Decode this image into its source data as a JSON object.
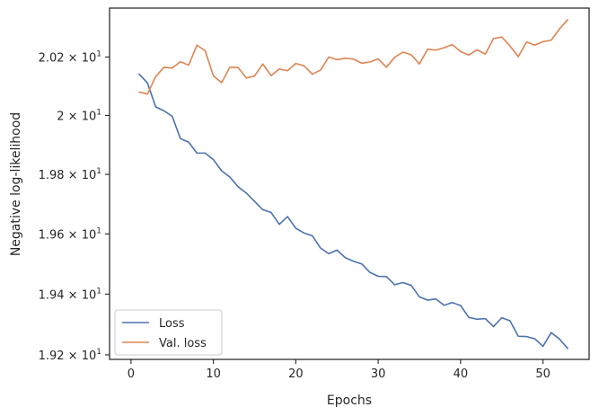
{
  "chart_data": {
    "type": "line",
    "xlabel": "Epochs",
    "ylabel": "Negative log-likelihood",
    "xlim": [
      -2.6,
      55.6
    ],
    "ylim": [
      19.1852,
      20.3693
    ],
    "y_scale": "log",
    "xticks": [
      0,
      10,
      20,
      30,
      40,
      50
    ],
    "xtick_labels": [
      "0",
      "10",
      "20",
      "30",
      "40",
      "50"
    ],
    "yticks": [
      19.2,
      19.4,
      19.6,
      19.8,
      20.0,
      20.2
    ],
    "ytick_mantissas": [
      "1.92",
      "1.94",
      "1.96",
      "1.98",
      "2",
      "2.02"
    ],
    "ytick_times": "×",
    "ytick_base": "10",
    "ytick_exp": "1",
    "grid": false,
    "legend_position": "lower-left",
    "x": [
      1,
      2,
      3,
      4,
      5,
      6,
      7,
      8,
      9,
      10,
      11,
      12,
      13,
      14,
      15,
      16,
      17,
      18,
      19,
      20,
      21,
      22,
      23,
      24,
      25,
      26,
      27,
      28,
      29,
      30,
      31,
      32,
      33,
      34,
      35,
      36,
      37,
      38,
      39,
      40,
      41,
      42,
      43,
      44,
      45,
      46,
      47,
      48,
      49,
      50,
      51,
      52,
      53
    ],
    "series": [
      {
        "name": "Loss",
        "color": "#4c72b0",
        "values": [
          20.141,
          20.111,
          20.029,
          20.016,
          19.997,
          19.921,
          19.909,
          19.872,
          19.872,
          19.85,
          19.812,
          19.791,
          19.758,
          19.737,
          19.709,
          19.681,
          19.672,
          19.632,
          19.658,
          19.619,
          19.603,
          19.594,
          19.553,
          19.534,
          19.546,
          19.521,
          19.509,
          19.5,
          19.472,
          19.459,
          19.458,
          19.431,
          19.438,
          19.429,
          19.391,
          19.38,
          19.384,
          19.363,
          19.372,
          19.362,
          19.323,
          19.317,
          19.319,
          19.293,
          19.322,
          19.312,
          19.261,
          19.26,
          19.253,
          19.228,
          19.273,
          19.252,
          19.221
        ]
      },
      {
        "name": "Val. loss",
        "color": "#dd8452",
        "values": [
          20.08,
          20.073,
          20.133,
          20.165,
          20.162,
          20.184,
          20.172,
          20.241,
          20.222,
          20.135,
          20.112,
          20.165,
          20.164,
          20.128,
          20.135,
          20.176,
          20.136,
          20.159,
          20.153,
          20.178,
          20.17,
          20.141,
          20.155,
          20.2,
          20.191,
          20.196,
          20.193,
          20.179,
          20.183,
          20.194,
          20.165,
          20.199,
          20.217,
          20.208,
          20.176,
          20.227,
          20.224,
          20.232,
          20.243,
          20.219,
          20.207,
          20.225,
          20.21,
          20.264,
          20.269,
          20.238,
          20.201,
          20.252,
          20.241,
          20.253,
          20.258,
          20.297,
          20.329
        ]
      }
    ]
  }
}
